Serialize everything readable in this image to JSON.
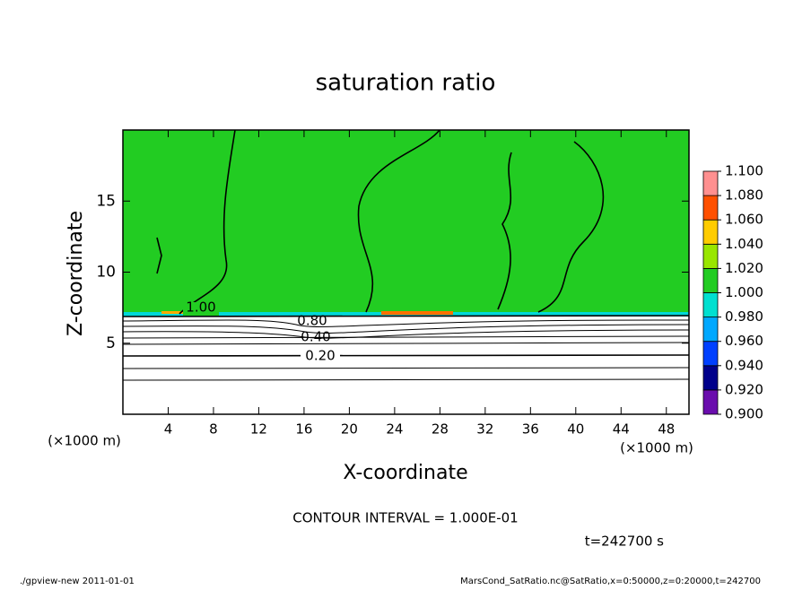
{
  "chart_data": {
    "type": "contour",
    "title": "saturation ratio",
    "x_label": "X-coordinate",
    "y_label": "Z-coordinate",
    "x_unit": "(×1000 m)",
    "xlim": [
      0,
      50
    ],
    "xticks": [
      4,
      8,
      12,
      16,
      20,
      24,
      28,
      32,
      36,
      40,
      44,
      48
    ],
    "ylim": [
      0,
      20
    ],
    "yticks": [
      5,
      10,
      15
    ],
    "colorbar": {
      "levels": [
        {
          "value": 0.9,
          "label": "0.900"
        },
        {
          "value": 0.92,
          "label": "0.920"
        },
        {
          "value": 0.94,
          "label": "0.940"
        },
        {
          "value": 0.96,
          "label": "0.960"
        },
        {
          "value": 0.98,
          "label": "0.980"
        },
        {
          "value": 1.0,
          "label": "1.000"
        },
        {
          "value": 1.02,
          "label": "1.020"
        },
        {
          "value": 1.04,
          "label": "1.040"
        },
        {
          "value": 1.06,
          "label": "1.060"
        },
        {
          "value": 1.08,
          "label": "1.080"
        },
        {
          "value": 1.1,
          "label": "1.100"
        }
      ],
      "colors": [
        "#6a0dad",
        "#00008b",
        "#0040ff",
        "#00a8ff",
        "#00e0d0",
        "#22cc22",
        "#99e600",
        "#ffcc00",
        "#ff5000",
        "#ff9090"
      ]
    },
    "contour_labels": [
      "1.00",
      "0.80",
      "0.40",
      "0.20"
    ],
    "annotation": "CONTOUR INTERVAL = 1.000E-01",
    "time": "t=242700 s"
  },
  "footer": {
    "left": "./gpview-new  2011-01-01",
    "right": "MarsCond_SatRatio.nc@SatRatio,x=0:50000,z=0:20000,t=242700"
  }
}
